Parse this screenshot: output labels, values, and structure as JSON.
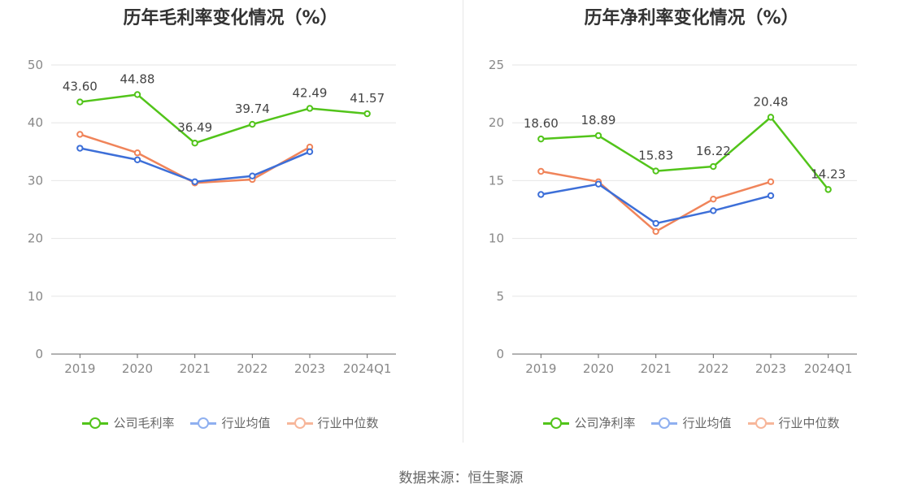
{
  "charts": [
    {
      "title": "历年毛利率变化情况（%）",
      "legend": [
        "公司毛利率",
        "行业均值",
        "行业中位数"
      ]
    },
    {
      "title": "历年净利率变化情况（%）",
      "legend": [
        "公司净利率",
        "行业均值",
        "行业中位数"
      ]
    }
  ],
  "source": "数据来源：恒生聚源",
  "colors": {
    "company": "#52c41a",
    "avg": "#3d6fd8",
    "median": "#f0845a",
    "legend_avg": "#8fb0f0",
    "legend_median": "#f7b69a"
  },
  "chart_data": [
    {
      "type": "line",
      "title": "历年毛利率变化情况（%）",
      "categories": [
        "2019",
        "2020",
        "2021",
        "2022",
        "2023",
        "2024Q1"
      ],
      "ylim": [
        0,
        50
      ],
      "yticks": [
        0,
        10,
        20,
        30,
        40,
        50
      ],
      "grid": true,
      "legend_position": "bottom",
      "series": [
        {
          "name": "公司毛利率",
          "values": [
            43.6,
            44.88,
            36.49,
            39.74,
            42.49,
            41.57
          ],
          "labels": [
            "43.60",
            "44.88",
            "36.49",
            "39.74",
            "42.49",
            "41.57"
          ]
        },
        {
          "name": "行业均值",
          "values": [
            35.6,
            33.6,
            29.8,
            30.8,
            35.0,
            null
          ]
        },
        {
          "name": "行业中位数",
          "values": [
            38.0,
            34.8,
            29.6,
            30.2,
            35.8,
            null
          ]
        }
      ]
    },
    {
      "type": "line",
      "title": "历年净利率变化情况（%）",
      "categories": [
        "2019",
        "2020",
        "2021",
        "2022",
        "2023",
        "2024Q1"
      ],
      "ylim": [
        0,
        25
      ],
      "yticks": [
        0,
        5,
        10,
        15,
        20,
        25
      ],
      "grid": true,
      "legend_position": "bottom",
      "series": [
        {
          "name": "公司净利率",
          "values": [
            18.6,
            18.89,
            15.83,
            16.22,
            20.48,
            14.23
          ],
          "labels": [
            "18.60",
            "18.89",
            "15.83",
            "16.22",
            "20.48",
            "14.23"
          ]
        },
        {
          "name": "行业均值",
          "values": [
            13.8,
            14.7,
            11.3,
            12.4,
            13.7,
            null
          ]
        },
        {
          "name": "行业中位数",
          "values": [
            15.8,
            14.9,
            10.6,
            13.4,
            14.9,
            null
          ]
        }
      ]
    }
  ]
}
